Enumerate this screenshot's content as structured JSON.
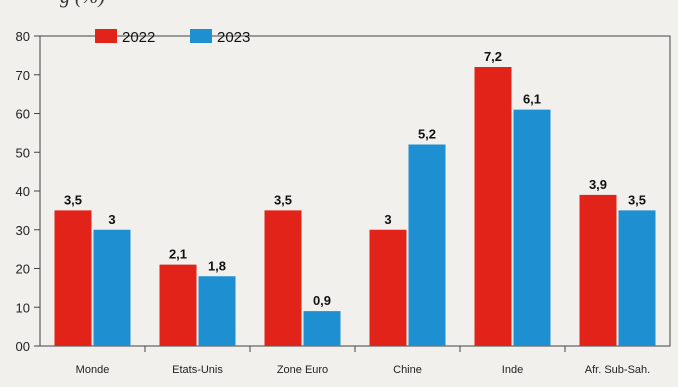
{
  "chart_data": {
    "type": "bar",
    "title": "",
    "title_fragment": "g                   (%)",
    "xlabel": "",
    "ylabel": "",
    "ylim": [
      0,
      80
    ],
    "yticks": [
      "00",
      "10",
      "20",
      "30",
      "40",
      "50",
      "60",
      "70",
      "80"
    ],
    "categories": [
      "Monde",
      "Etats-Unis",
      "Zone Euro",
      "Chine",
      "Inde",
      "Afr. Sub-Sah."
    ],
    "series": [
      {
        "name": "2022",
        "color": "#e2231a",
        "values": [
          35,
          21,
          35,
          30,
          72,
          39
        ],
        "labels": [
          "3,5",
          "2,1",
          "3,5",
          "3",
          "7,2",
          "3,9"
        ]
      },
      {
        "name": "2023",
        "color": "#1e8fd0",
        "values": [
          30,
          18,
          9,
          52,
          61,
          35
        ],
        "labels": [
          "3",
          "1,8",
          "0,9",
          "5,2",
          "6,1",
          "3,5"
        ]
      }
    ],
    "grid": false,
    "legend_position": "top-left"
  }
}
